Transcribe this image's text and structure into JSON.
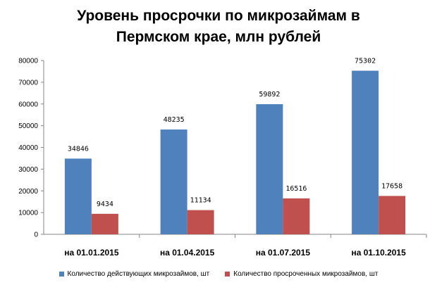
{
  "chart_data": {
    "type": "bar",
    "title_lines": [
      "Уровень просрочки по микрозаймам в",
      "Пермском крае, млн рублей"
    ],
    "categories": [
      "на 01.01.2015",
      "на 01.04.2015",
      "на 01.07.2015",
      "на 01.10.2015"
    ],
    "series": [
      {
        "name": "Количество действующих  микрозаймов, шт",
        "values": [
          34846,
          48235,
          59892,
          75302
        ],
        "color": "#4F81BD"
      },
      {
        "name": "Количество просроченных микрозаймов, шт",
        "values": [
          9434,
          11134,
          16516,
          17658
        ],
        "color": "#C0504D"
      }
    ],
    "ylim": [
      0,
      80000
    ],
    "yticks": [
      0,
      10000,
      20000,
      30000,
      40000,
      50000,
      60000,
      70000,
      80000
    ],
    "grid": false,
    "legend_position": "bottom"
  }
}
